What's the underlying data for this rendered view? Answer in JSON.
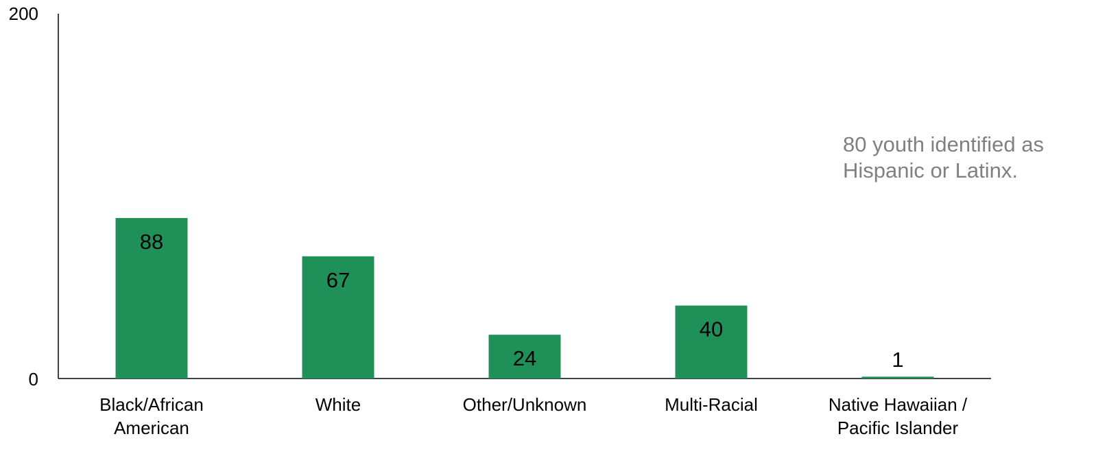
{
  "chart_data": {
    "type": "bar",
    "categories": [
      [
        "Black/African",
        "American"
      ],
      [
        "White"
      ],
      [
        "Other/Unknown"
      ],
      [
        "Multi-Racial"
      ],
      [
        "Native Hawaiian /",
        "Pacific Islander"
      ]
    ],
    "values": [
      88,
      67,
      24,
      40,
      1
    ],
    "data_labels": [
      "88",
      "67",
      "24",
      "40",
      "1"
    ],
    "ylim": [
      0,
      200
    ],
    "y_ticks": [
      "0",
      "200"
    ],
    "title": "",
    "xlabel": "",
    "ylabel": "",
    "grid": false,
    "bar_color": "#1f9158",
    "annotation": [
      "80 youth identified as",
      "Hispanic or Latinx."
    ]
  }
}
